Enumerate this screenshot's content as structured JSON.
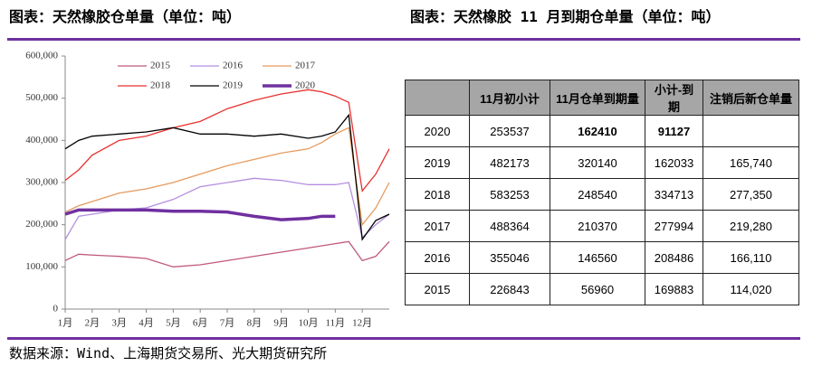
{
  "header": {
    "left_title": "图表：天然橡胶仓单量（单位：吨）",
    "right_title": "图表：天然橡胶 11 月到期仓单量（单位：吨）"
  },
  "chart_data": {
    "type": "line",
    "x": [
      1,
      1.5,
      2,
      3,
      4,
      5,
      6,
      7,
      8,
      9,
      10,
      10.5,
      11,
      11.5,
      12,
      12.5,
      13
    ],
    "series": [
      {
        "name": "2015",
        "color": "#c0587a",
        "width": 1.3,
        "values": [
          115000,
          130000,
          128000,
          125000,
          120000,
          100000,
          105000,
          115000,
          125000,
          135000,
          145000,
          150000,
          155000,
          160000,
          115000,
          125000,
          160000
        ]
      },
      {
        "name": "2016",
        "color": "#b58ee0",
        "width": 1.3,
        "values": [
          165000,
          220000,
          225000,
          235000,
          240000,
          260000,
          290000,
          300000,
          310000,
          305000,
          295000,
          295000,
          295000,
          300000,
          170000,
          200000,
          225000
        ]
      },
      {
        "name": "2017",
        "color": "#e59a5e",
        "width": 1.3,
        "values": [
          230000,
          245000,
          255000,
          275000,
          285000,
          300000,
          320000,
          340000,
          355000,
          370000,
          380000,
          395000,
          415000,
          430000,
          200000,
          240000,
          300000
        ]
      },
      {
        "name": "2018",
        "color": "#e8312f",
        "width": 1.3,
        "values": [
          305000,
          330000,
          365000,
          400000,
          410000,
          430000,
          445000,
          475000,
          495000,
          510000,
          520000,
          515000,
          505000,
          490000,
          280000,
          320000,
          380000
        ]
      },
      {
        "name": "2019",
        "color": "#000000",
        "width": 1.3,
        "values": [
          380000,
          400000,
          410000,
          415000,
          420000,
          430000,
          415000,
          415000,
          410000,
          415000,
          405000,
          410000,
          420000,
          460000,
          165000,
          210000,
          225000
        ]
      },
      {
        "name": "2020",
        "color": "#7030a0",
        "width": 3.5,
        "values": [
          225000,
          235000,
          235000,
          235000,
          235000,
          232000,
          232000,
          230000,
          220000,
          212000,
          215000,
          220000,
          220000,
          null,
          null,
          null,
          null
        ]
      }
    ],
    "xlim": [
      1,
      13
    ],
    "xticks": [
      {
        "value": 1,
        "label": "1月"
      },
      {
        "value": 2,
        "label": "2月"
      },
      {
        "value": 3,
        "label": "3月"
      },
      {
        "value": 4,
        "label": "4月"
      },
      {
        "value": 5,
        "label": "5月"
      },
      {
        "value": 6,
        "label": "6月"
      },
      {
        "value": 7,
        "label": "7月"
      },
      {
        "value": 8,
        "label": "8月"
      },
      {
        "value": 9,
        "label": "9月"
      },
      {
        "value": 10,
        "label": "10月"
      },
      {
        "value": 11,
        "label": "11月"
      },
      {
        "value": 12,
        "label": "12月"
      }
    ],
    "ylim": [
      0,
      600000
    ],
    "yticks": [
      0,
      {
        "value": 100000,
        "label": "100,000"
      },
      {
        "value": 200000,
        "label": "200,000"
      },
      {
        "value": 300000,
        "label": "300,000"
      },
      {
        "value": 400000,
        "label": "400,000"
      },
      {
        "value": 500000,
        "label": "500,000"
      },
      {
        "value": 600000,
        "label": "600,000"
      }
    ]
  },
  "table": {
    "header": [
      "",
      "11月初小计",
      "11月仓单到期量",
      "小计-到期",
      "注销后新仓单量"
    ],
    "rows": [
      [
        "2020",
        "253537",
        "162410",
        "91127",
        ""
      ],
      [
        "2019",
        "482173",
        "320140",
        "162033",
        "165,740"
      ],
      [
        "2018",
        "583253",
        "248540",
        "334713",
        "277,350"
      ],
      [
        "2017",
        "488364",
        "210370",
        "277994",
        "219,280"
      ],
      [
        "2016",
        "355046",
        "146560",
        "208486",
        "166,110"
      ],
      [
        "2015",
        "226843",
        "56960",
        "169883",
        "114,020"
      ]
    ],
    "bold": [
      [
        0,
        2
      ],
      [
        0,
        3
      ]
    ]
  },
  "footer": {
    "source": "数据来源：Wind、上海期货交易所、光大期货研究所"
  }
}
